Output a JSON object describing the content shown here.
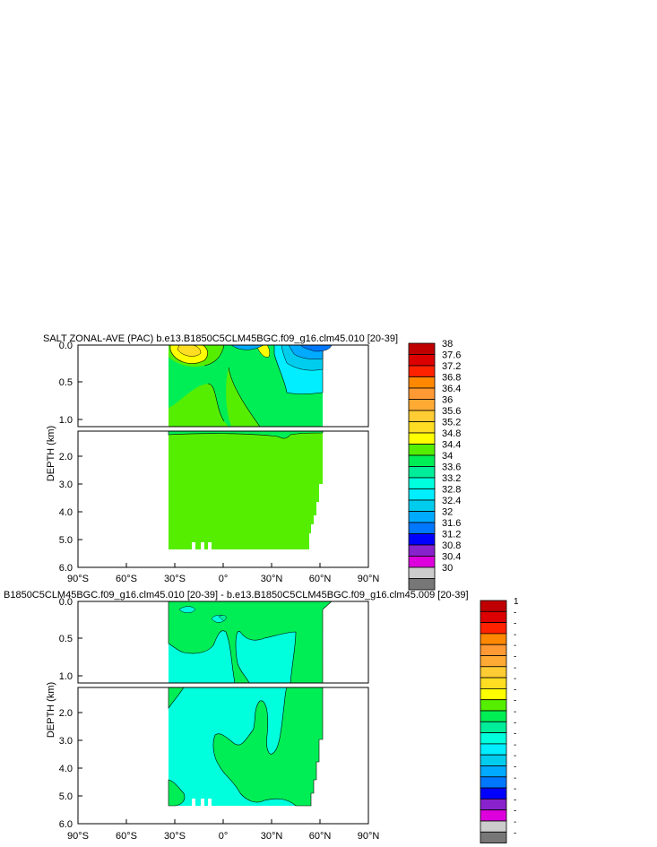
{
  "chart_data": [
    {
      "type": "heatmap",
      "title": "SALT ZONAL-AVE (PAC) b.e13.B1850C5CLM45BGC.f09_g16.clm45.010 [20-39]",
      "ylabel": "DEPTH (km)",
      "x_ticks": [
        "90°S",
        "60°S",
        "30°S",
        "0°",
        "30°N",
        "60°N",
        "90°N"
      ],
      "y_ticks_upper": [
        "0.0",
        "0.5",
        "1.0"
      ],
      "y_ticks_lower": [
        "2.0",
        "3.0",
        "4.0",
        "5.0",
        "6.0"
      ],
      "legend_labels": [
        "38",
        "37.6",
        "37.2",
        "36.8",
        "36.4",
        "36",
        "35.6",
        "35.2",
        "34.8",
        "34.4",
        "34",
        "33.6",
        "33.2",
        "32.8",
        "32.4",
        "32",
        "31.6",
        "31.2",
        "30.8",
        "30.4",
        "30"
      ],
      "colors": [
        "#c00000",
        "#dd0000",
        "#ff2200",
        "#ff8800",
        "#ff9933",
        "#ffaa33",
        "#ffcc33",
        "#ffdd22",
        "#ffff00",
        "#55ee00",
        "#00ee55",
        "#00ee99",
        "#00ffdd",
        "#00eeff",
        "#00ccee",
        "#00aaff",
        "#0077ff",
        "#0000ff",
        "#8822cc",
        "#dd00dd",
        "#cccccc",
        "#777777"
      ]
    },
    {
      "type": "heatmap",
      "title": "B1850C5CLM45BGC.f09_g16.clm45.010 [20-39] - b.e13.B1850C5CLM45BGC.f09_g16.clm45.009 [20-39]",
      "ylabel": "DEPTH (km)",
      "x_ticks": [
        "90°S",
        "60°S",
        "30°S",
        "0°",
        "30°N",
        "60°N",
        "90°N"
      ],
      "y_ticks_upper": [
        "0.0",
        "0.5",
        "1.0"
      ],
      "y_ticks_lower": [
        "2.0",
        "3.0",
        "4.0",
        "5.0",
        "6.0"
      ],
      "legend_labels": [
        "1",
        "-",
        "-",
        "-",
        "-",
        "-",
        "-",
        "-",
        "-",
        "-",
        "-",
        "-",
        "-",
        "-",
        "-",
        "-",
        "-",
        "-",
        "-",
        "-",
        "-",
        "-"
      ],
      "colors": [
        "#c00000",
        "#dd0000",
        "#ff2200",
        "#ff8800",
        "#ff9933",
        "#ffaa33",
        "#ffcc33",
        "#ffdd22",
        "#ffff00",
        "#55ee00",
        "#00ee55",
        "#00ee99",
        "#00ffdd",
        "#00eeff",
        "#00ccee",
        "#00aaff",
        "#0077ff",
        "#0000ff",
        "#8822cc",
        "#dd00dd",
        "#cccccc",
        "#777777"
      ]
    }
  ]
}
